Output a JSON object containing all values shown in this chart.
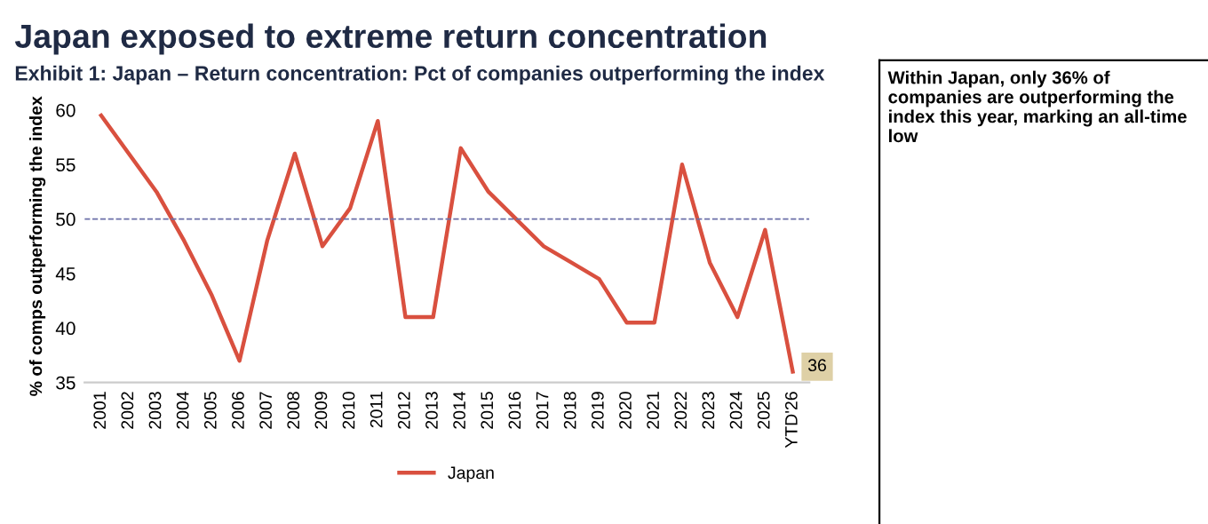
{
  "chart_data": {
    "type": "line",
    "title": "Japan exposed to extreme return concentration",
    "subtitle": "Exhibit 1: Japan – Return concentration: Pct of companies outperforming the index",
    "ylabel": "% of comps outperforming the index",
    "categories": [
      "2001",
      "2002",
      "2003",
      "2004",
      "2005",
      "2006",
      "2007",
      "2008",
      "2009",
      "2010",
      "2011",
      "2012",
      "2013",
      "2014",
      "2015",
      "2016",
      "2017",
      "2018",
      "2019",
      "2020",
      "2021",
      "2022",
      "2023",
      "2024",
      "2025",
      "YTD'26"
    ],
    "series": [
      {
        "name": "Japan",
        "color": "#d9503f",
        "values": [
          59.5,
          56,
          52.5,
          48,
          43,
          37,
          48,
          56,
          47.5,
          51,
          59,
          41,
          41,
          56.5,
          52.5,
          50,
          47.5,
          46,
          44.5,
          40.5,
          40.5,
          55,
          46,
          41,
          49,
          36
        ],
        "value_labels": [
          null,
          null,
          null,
          null,
          null,
          null,
          null,
          null,
          null,
          null,
          null,
          null,
          null,
          null,
          null,
          null,
          null,
          null,
          null,
          null,
          null,
          null,
          null,
          null,
          null,
          "36"
        ]
      }
    ],
    "ylim": [
      35,
      60
    ],
    "yticks": [
      35,
      40,
      45,
      50,
      55,
      60
    ],
    "ref_lines": [
      {
        "axis": "y",
        "value": 50,
        "color": "#6b6fa8",
        "line_style": "dashed"
      }
    ],
    "annotations": [
      "Within Japan, only 36% of companies are outperforming the index this year, marking an all-time low"
    ],
    "legend": "bottom",
    "grid": false,
    "marker": "none",
    "line_style": "solid"
  }
}
